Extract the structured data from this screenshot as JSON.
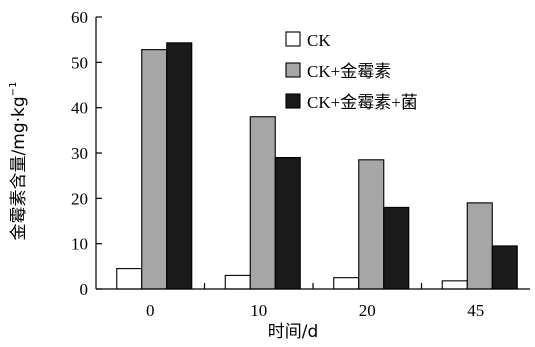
{
  "chart_data": {
    "type": "bar",
    "categories": [
      "0",
      "10",
      "20",
      "45"
    ],
    "series": [
      {
        "name": "CK",
        "values": [
          4.5,
          3.0,
          2.5,
          1.8
        ],
        "color": "#ffffff"
      },
      {
        "name": "CK+金霉素",
        "values": [
          52.8,
          38.0,
          28.5,
          19.0
        ],
        "color": "#a6a6a6"
      },
      {
        "name": "CK+金霉素+菌",
        "values": [
          54.3,
          29.0,
          18.0,
          9.5
        ],
        "color": "#1a1a1a"
      }
    ],
    "xlabel": "时间/d",
    "ylabel": "金霉素含量/mg·kg",
    "ylabel_superscript": "−1",
    "ylim": [
      0,
      60
    ],
    "yticks": [
      0,
      10,
      20,
      30,
      40,
      50,
      60
    ],
    "grid": false,
    "legend_position": "top-right"
  }
}
